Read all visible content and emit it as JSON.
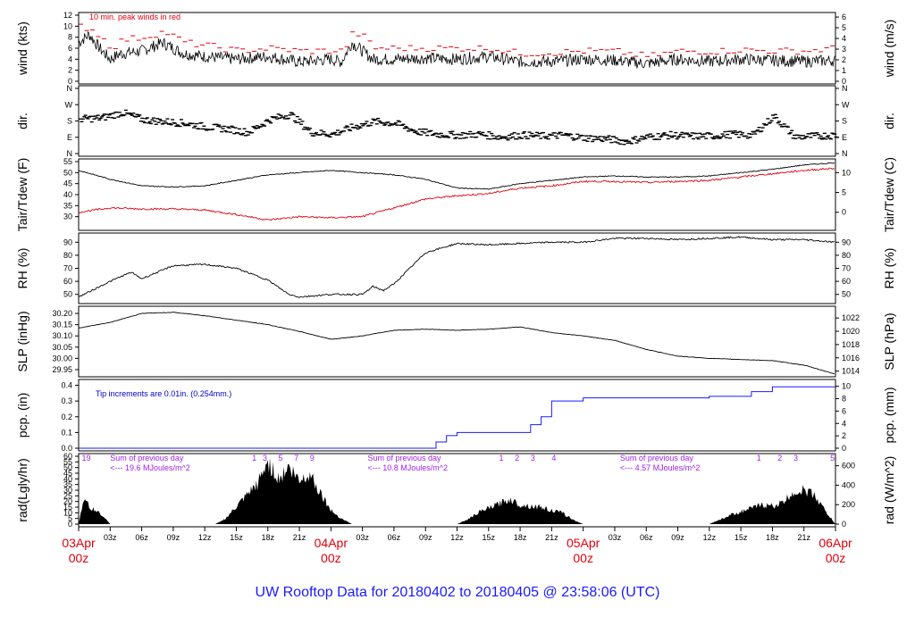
{
  "title": "UW Rooftop Data for 20180402  to  20180405 @ 23:58:06  (UTC)",
  "colors": {
    "main": "#000000",
    "peak": "#e0000e",
    "precip": "#1a1aff",
    "annotation": "#a020f0",
    "title": "#1a1aff",
    "date_label": "#e0000e"
  },
  "x_axis": {
    "hours_ticks": [
      "00z",
      "03z",
      "06z",
      "09z",
      "12z",
      "15z",
      "18z",
      "21z",
      "00z",
      "03z",
      "06z",
      "09z",
      "12z",
      "15z",
      "18z",
      "21z",
      "00z",
      "03z",
      "06z",
      "09z",
      "12z",
      "15z",
      "18z",
      "21z",
      "00z"
    ],
    "date_labels": [
      {
        "day": "03Apr",
        "hour": "00z"
      },
      {
        "day": "04Apr",
        "hour": "00z"
      },
      {
        "day": "05Apr",
        "hour": "00z"
      },
      {
        "day": "06Apr",
        "hour": "00z"
      }
    ]
  },
  "chart_data": [
    {
      "type": "line",
      "name": "wind",
      "ylabel_left": "wind (kts)",
      "ylabel_right": "wind (m/s)",
      "ylim": [
        0,
        12
      ],
      "left_ticks": [
        "0",
        "2",
        "4",
        "6",
        "8",
        "10",
        "12"
      ],
      "right_ticks": [
        "0",
        "1",
        "2",
        "3",
        "4",
        "5",
        "6"
      ],
      "annotation": "10 min. peak winds in red",
      "x_hours": [
        0,
        1,
        2,
        3,
        4,
        6,
        8,
        10,
        12,
        15,
        18,
        21,
        24,
        25,
        26,
        27,
        28,
        30,
        33,
        36,
        39,
        42,
        45,
        48,
        51,
        54,
        57,
        60,
        63,
        66,
        69,
        72
      ],
      "values": [
        7,
        8.5,
        6,
        4,
        5,
        5.5,
        7,
        5,
        4.5,
        4,
        4.5,
        3.5,
        4,
        3.5,
        7,
        5.5,
        4,
        4,
        4.2,
        4,
        4.5,
        3.5,
        3.6,
        4,
        3.8,
        3.2,
        4,
        3.6,
        4,
        3.8,
        3.6,
        3.8
      ],
      "peak_values": [
        10,
        9.5,
        8,
        6,
        7.5,
        8,
        9,
        7,
        6.5,
        5.5,
        6,
        5.5,
        5.5,
        5.5,
        9,
        8,
        6,
        6,
        6,
        6,
        6,
        5,
        5.2,
        5.5,
        5.4,
        4.5,
        5.5,
        5.4,
        5.7,
        5.5,
        5.5,
        6
      ]
    },
    {
      "type": "scatter",
      "name": "dir",
      "ylabel_left": "dir.",
      "ylabel_right": "dir.",
      "left_ticks": [
        "N",
        "E",
        "S",
        "W",
        "N"
      ],
      "right_ticks": [
        "N",
        "E",
        "S",
        "W",
        "N"
      ],
      "x_hours": [
        0,
        2,
        4,
        6,
        8,
        10,
        12,
        14,
        16,
        18,
        20,
        22,
        24,
        26,
        28,
        30,
        32,
        34,
        36,
        38,
        40,
        42,
        44,
        46,
        48,
        50,
        52,
        54,
        56,
        58,
        60,
        62,
        64,
        66,
        68,
        70,
        72
      ],
      "values_deg": [
        195,
        200,
        230,
        190,
        180,
        170,
        150,
        140,
        120,
        190,
        220,
        120,
        110,
        150,
        180,
        170,
        125,
        110,
        105,
        110,
        95,
        105,
        100,
        105,
        90,
        85,
        70,
        95,
        105,
        100,
        100,
        110,
        105,
        210,
        95,
        100,
        105
      ]
    },
    {
      "type": "line",
      "name": "temperature",
      "ylabel_left": "Tair/Tdew (F)",
      "ylabel_right": "Tair/Tdew (C)",
      "ylim": [
        25,
        55
      ],
      "left_ticks": [
        "30",
        "35",
        "40",
        "45",
        "50",
        "55"
      ],
      "right_ticks": [
        "0",
        "5",
        "10"
      ],
      "x_hours": [
        0,
        3,
        6,
        9,
        12,
        15,
        18,
        21,
        24,
        27,
        30,
        33,
        36,
        39,
        42,
        45,
        48,
        51,
        54,
        57,
        60,
        63,
        66,
        69,
        72
      ],
      "tair": [
        51,
        47,
        44,
        43.5,
        44,
        46.5,
        49,
        50,
        51,
        50,
        49,
        47,
        43,
        42.5,
        45,
        46.5,
        48,
        48.5,
        48,
        48,
        48.5,
        50,
        51.5,
        53.5,
        54.5
      ],
      "tdew": [
        32,
        34,
        33.5,
        33.5,
        33,
        31,
        28.5,
        30,
        29.5,
        30,
        34,
        38,
        39.5,
        40.5,
        43,
        44,
        46,
        46,
        45.5,
        46,
        46.5,
        48,
        49.5,
        51,
        52
      ]
    },
    {
      "type": "line",
      "name": "rh",
      "ylabel_left": "RH (%)",
      "ylabel_right": "RH (%)",
      "ylim": [
        45,
        95
      ],
      "left_ticks": [
        "50",
        "60",
        "70",
        "80",
        "90"
      ],
      "right_ticks": [
        "50",
        "60",
        "70",
        "80",
        "90"
      ],
      "x_hours": [
        0,
        3,
        5,
        6,
        9,
        12,
        15,
        18,
        20,
        21,
        24,
        27,
        28,
        29,
        30,
        33,
        36,
        39,
        42,
        45,
        48,
        51,
        54,
        57,
        60,
        63,
        66,
        69,
        72
      ],
      "values": [
        48,
        60,
        67,
        62,
        72,
        73,
        70,
        61,
        50,
        48,
        50,
        50,
        56,
        53,
        58,
        82,
        89,
        88,
        89,
        90,
        90,
        93,
        93,
        92,
        93,
        94,
        92,
        92,
        90
      ]
    },
    {
      "type": "line",
      "name": "slp",
      "ylabel_left": "SLP (inHg)",
      "ylabel_right": "SLP (hPa)",
      "ylim": [
        29.93,
        30.22
      ],
      "left_ticks": [
        "29.95",
        "30.00",
        "30.05",
        "30.10",
        "30.15",
        "30.20"
      ],
      "right_ticks": [
        "1014",
        "1016",
        "1018",
        "1020",
        "1022"
      ],
      "x_hours": [
        0,
        3,
        6,
        9,
        12,
        15,
        18,
        21,
        24,
        27,
        30,
        33,
        36,
        39,
        42,
        45,
        48,
        51,
        54,
        57,
        60,
        63,
        66,
        69,
        72
      ],
      "values": [
        30.135,
        30.16,
        30.2,
        30.205,
        30.19,
        30.17,
        30.15,
        30.12,
        30.085,
        30.1,
        30.125,
        30.13,
        30.125,
        30.13,
        30.14,
        30.115,
        30.1,
        30.08,
        30.04,
        30.01,
        30.0,
        29.995,
        29.99,
        29.97,
        29.93
      ]
    },
    {
      "type": "line",
      "name": "pcp",
      "ylabel_left": "pcp. (in)",
      "ylabel_right": "pcp. (mm)",
      "ylim": [
        0,
        0.42
      ],
      "left_ticks": [
        "0.0",
        "0.1",
        "0.2",
        "0.3",
        "0.4"
      ],
      "right_ticks": [
        "0",
        "2",
        "4",
        "6",
        "8",
        "10"
      ],
      "annotation": "Tip increments are 0.01in. (0.254mm.)",
      "x_hours": [
        0,
        33,
        34,
        35,
        36,
        39,
        42,
        43,
        44,
        45,
        48,
        60,
        63,
        64,
        66,
        72
      ],
      "values": [
        0,
        0,
        0.04,
        0.08,
        0.1,
        0.1,
        0.1,
        0.15,
        0.2,
        0.3,
        0.32,
        0.33,
        0.33,
        0.36,
        0.39,
        0.39
      ]
    },
    {
      "type": "area",
      "name": "radiation",
      "ylabel_left": "rad(Lgly/hr)",
      "ylabel_right": "rad (W/m^2)",
      "ylim": [
        0,
        60
      ],
      "left_ticks": [
        "0",
        "5",
        "10",
        "15",
        "20",
        "25",
        "30",
        "35",
        "40",
        "45",
        "50",
        "55",
        "60"
      ],
      "right_ticks": [
        "0",
        "200",
        "400",
        "600"
      ],
      "x_hours": [
        0,
        0.5,
        1,
        2,
        3,
        13,
        14,
        15,
        16,
        17,
        18,
        19,
        20,
        21,
        22,
        23,
        24,
        25,
        26,
        36,
        37,
        38,
        39,
        40,
        41,
        42,
        43,
        44,
        45,
        46,
        47,
        48,
        60,
        61,
        62,
        63,
        64,
        65,
        66,
        67,
        68,
        69,
        70,
        71,
        72
      ],
      "values": [
        0,
        24,
        15,
        10,
        0,
        0,
        5,
        15,
        25,
        35,
        55,
        40,
        50,
        38,
        45,
        28,
        12,
        5,
        0,
        0,
        4,
        10,
        14,
        18,
        22,
        17,
        16,
        15,
        12,
        10,
        4,
        0,
        0,
        4,
        8,
        11,
        14,
        17,
        16,
        19,
        28,
        30,
        26,
        12,
        0
      ],
      "annotations": [
        {
          "hour": 0.3,
          "text": "19"
        },
        {
          "hour": 3,
          "text": "Sum of previous day"
        },
        {
          "hour": 3,
          "text": "<--- 19.6 MJoules/m^2"
        },
        {
          "hour": 16.5,
          "text": "1"
        },
        {
          "hour": 17.5,
          "text": "3"
        },
        {
          "hour": 19,
          "text": "5"
        },
        {
          "hour": 20.5,
          "text": "7"
        },
        {
          "hour": 22,
          "text": "9"
        },
        {
          "hour": 27.5,
          "text": "Sum of previous day"
        },
        {
          "hour": 27.5,
          "text": "<--- 10.8 MJoules/m^2"
        },
        {
          "hour": 40,
          "text": "1"
        },
        {
          "hour": 41.5,
          "text": "2"
        },
        {
          "hour": 43,
          "text": "3"
        },
        {
          "hour": 45,
          "text": "4"
        },
        {
          "hour": 51.5,
          "text": "Sum of previous day"
        },
        {
          "hour": 51.5,
          "text": "<--- 4.57 MJoules/m^2"
        },
        {
          "hour": 64.5,
          "text": "1"
        },
        {
          "hour": 66.5,
          "text": "2"
        },
        {
          "hour": 68,
          "text": "3"
        },
        {
          "hour": 71.5,
          "text": "5"
        }
      ]
    }
  ]
}
